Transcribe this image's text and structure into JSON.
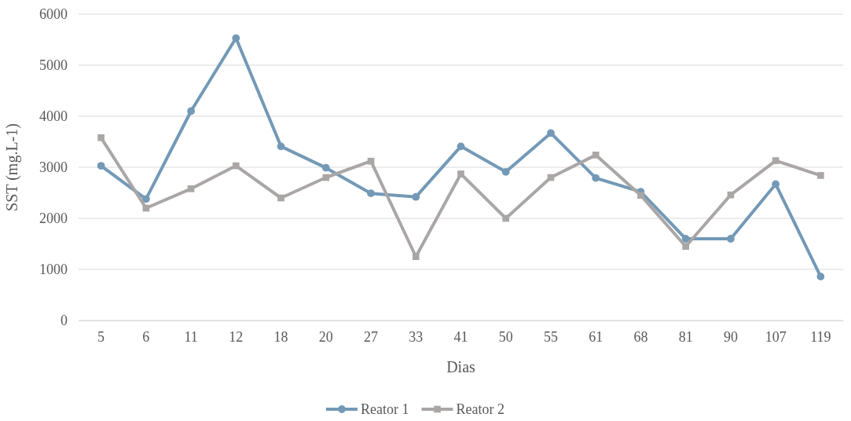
{
  "chart_data": {
    "type": "line",
    "xlabel": "Dias",
    "ylabel": "SST (mg.L-1)",
    "categories": [
      "5",
      "6",
      "11",
      "12",
      "18",
      "20",
      "27",
      "33",
      "41",
      "50",
      "55",
      "61",
      "68",
      "81",
      "90",
      "107",
      "119"
    ],
    "series": [
      {
        "name": "Reator 1",
        "color": "#7399b6",
        "values": [
          3030,
          2380,
          4100,
          5530,
          3410,
          2990,
          2490,
          2420,
          3410,
          2910,
          3670,
          2790,
          2520,
          1600,
          1600,
          2670,
          860
        ]
      },
      {
        "name": "Reator 2",
        "color": "#aaa6a6",
        "marker": "square",
        "values": [
          3580,
          2200,
          2580,
          3030,
          2400,
          2800,
          3120,
          1250,
          2870,
          2000,
          2800,
          3240,
          2450,
          1450,
          2460,
          3130,
          2840
        ]
      }
    ],
    "ylim": [
      0,
      6000
    ],
    "yticks": [
      0,
      1000,
      2000,
      3000,
      4000,
      5000,
      6000
    ],
    "grid": "y",
    "legend": "bottom",
    "marker": "circle",
    "line_style": "solid"
  }
}
